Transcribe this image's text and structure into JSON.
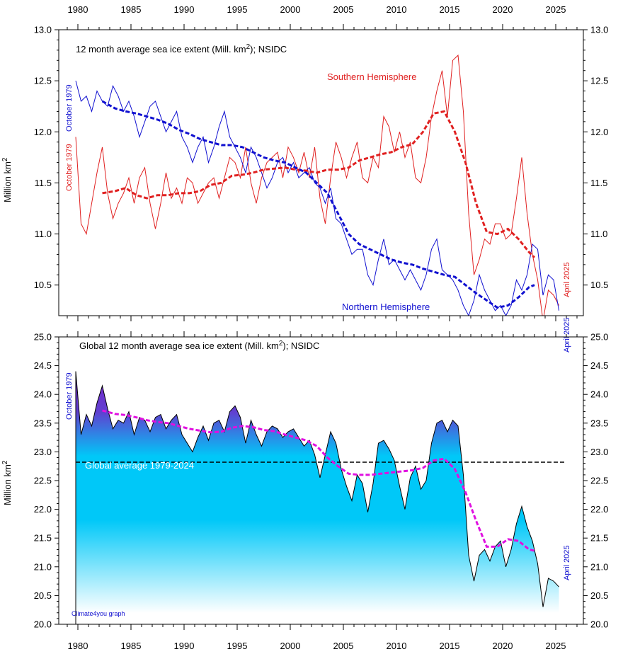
{
  "chart_data": [
    {
      "type": "line",
      "title": "12 month average sea ice extent (Mill. km²); NSIDC",
      "title_main": "12 month average sea ice extent (Mill. km",
      "title_sup": "2",
      "title_tail": "); NSIDC",
      "ylabel_main": "Million km",
      "ylabel_sup": "2",
      "ylim": [
        10.2,
        13.0
      ],
      "yticks": [
        "10.5",
        "11.0",
        "11.5",
        "12.0",
        "12.5",
        "13.0"
      ],
      "xlim": [
        1978.2,
        2027.6
      ],
      "xticks": [
        "1980",
        "1985",
        "1990",
        "1995",
        "2000",
        "2005",
        "2010",
        "2015",
        "2020",
        "2025"
      ],
      "start_label_nh": "October 1979",
      "start_label_sh": "October 1979",
      "end_label_sh": "April 2025",
      "end_label_nh": "April 2025",
      "series": [
        {
          "name": "Southern Hemisphere",
          "color": "#e02020",
          "x": [
            1979.8,
            1980.3,
            1980.8,
            1981.3,
            1981.8,
            1982.3,
            1982.8,
            1983.3,
            1983.8,
            1984.3,
            1984.8,
            1985.3,
            1985.8,
            1986.3,
            1986.8,
            1987.3,
            1987.8,
            1988.3,
            1988.8,
            1989.3,
            1989.8,
            1990.3,
            1990.8,
            1991.3,
            1991.8,
            1992.3,
            1992.8,
            1993.3,
            1993.8,
            1994.3,
            1994.8,
            1995.3,
            1995.8,
            1996.3,
            1996.8,
            1997.3,
            1997.8,
            1998.3,
            1998.8,
            1999.3,
            1999.8,
            2000.3,
            2000.8,
            2001.3,
            2001.8,
            2002.3,
            2002.8,
            2003.3,
            2003.8,
            2004.3,
            2004.8,
            2005.3,
            2005.8,
            2006.3,
            2006.8,
            2007.3,
            2007.8,
            2008.3,
            2008.8,
            2009.3,
            2009.8,
            2010.3,
            2010.8,
            2011.3,
            2011.8,
            2012.3,
            2012.8,
            2013.3,
            2013.8,
            2014.3,
            2014.8,
            2015.3,
            2015.8,
            2016.3,
            2016.8,
            2017.3,
            2017.8,
            2018.3,
            2018.8,
            2019.3,
            2019.8,
            2020.3,
            2020.8,
            2021.3,
            2021.8,
            2022.3,
            2022.8,
            2023.3,
            2023.8,
            2024.3,
            2024.8,
            2025.3
          ],
          "values": [
            11.95,
            11.1,
            11.0,
            11.3,
            11.6,
            11.85,
            11.4,
            11.15,
            11.3,
            11.4,
            11.55,
            11.3,
            11.55,
            11.65,
            11.3,
            11.05,
            11.3,
            11.6,
            11.35,
            11.45,
            11.3,
            11.55,
            11.5,
            11.3,
            11.4,
            11.5,
            11.55,
            11.35,
            11.55,
            11.75,
            11.7,
            11.55,
            11.85,
            11.5,
            11.3,
            11.55,
            11.7,
            11.75,
            11.8,
            11.55,
            11.85,
            11.75,
            11.6,
            11.8,
            11.55,
            11.85,
            11.35,
            11.1,
            11.55,
            11.9,
            11.75,
            11.55,
            11.75,
            11.9,
            11.55,
            11.5,
            11.75,
            11.65,
            12.15,
            12.05,
            11.8,
            12.0,
            11.75,
            11.9,
            11.55,
            11.5,
            11.75,
            12.15,
            12.4,
            12.6,
            12.15,
            12.7,
            12.75,
            12.2,
            11.2,
            10.6,
            10.75,
            10.95,
            10.9,
            11.1,
            11.1,
            10.95,
            11.0,
            11.35,
            11.75,
            11.2,
            10.8,
            10.55,
            10.15,
            10.45,
            10.4,
            10.3
          ]
        },
        {
          "name": "Northern Hemisphere",
          "color": "#1010d0",
          "x": [
            1979.8,
            1980.3,
            1980.8,
            1981.3,
            1981.8,
            1982.3,
            1982.8,
            1983.3,
            1983.8,
            1984.3,
            1984.8,
            1985.3,
            1985.8,
            1986.3,
            1986.8,
            1987.3,
            1987.8,
            1988.3,
            1988.8,
            1989.3,
            1989.8,
            1990.3,
            1990.8,
            1991.3,
            1991.8,
            1992.3,
            1992.8,
            1993.3,
            1993.8,
            1994.3,
            1994.8,
            1995.3,
            1995.8,
            1996.3,
            1996.8,
            1997.3,
            1997.8,
            1998.3,
            1998.8,
            1999.3,
            1999.8,
            2000.3,
            2000.8,
            2001.3,
            2001.8,
            2002.3,
            2002.8,
            2003.3,
            2003.8,
            2004.3,
            2004.8,
            2005.3,
            2005.8,
            2006.3,
            2006.8,
            2007.3,
            2007.8,
            2008.3,
            2008.8,
            2009.3,
            2009.8,
            2010.3,
            2010.8,
            2011.3,
            2011.8,
            2012.3,
            2012.8,
            2013.3,
            2013.8,
            2014.3,
            2014.8,
            2015.3,
            2015.8,
            2016.3,
            2016.8,
            2017.3,
            2017.8,
            2018.3,
            2018.8,
            2019.3,
            2019.8,
            2020.3,
            2020.8,
            2021.3,
            2021.8,
            2022.3,
            2022.8,
            2023.3,
            2023.8,
            2024.3,
            2024.8,
            2025.3
          ],
          "values": [
            12.5,
            12.3,
            12.35,
            12.2,
            12.4,
            12.3,
            12.25,
            12.45,
            12.35,
            12.2,
            12.3,
            12.15,
            11.95,
            12.1,
            12.25,
            12.3,
            12.15,
            12.0,
            12.1,
            12.2,
            11.95,
            11.85,
            11.7,
            11.85,
            11.95,
            11.7,
            11.85,
            12.05,
            12.2,
            11.95,
            11.85,
            11.75,
            11.6,
            11.85,
            11.75,
            11.6,
            11.45,
            11.55,
            11.7,
            11.75,
            11.6,
            11.7,
            11.55,
            11.6,
            11.65,
            11.5,
            11.45,
            11.3,
            11.45,
            11.15,
            11.1,
            10.95,
            10.8,
            10.85,
            10.85,
            10.6,
            10.5,
            10.75,
            10.95,
            10.7,
            10.75,
            10.65,
            10.55,
            10.65,
            10.55,
            10.45,
            10.6,
            10.85,
            10.95,
            10.65,
            10.6,
            10.55,
            10.45,
            10.3,
            10.2,
            10.35,
            10.6,
            10.45,
            10.35,
            10.25,
            10.3,
            10.2,
            10.3,
            10.55,
            10.45,
            10.6,
            10.9,
            10.85,
            10.4,
            10.6,
            10.55,
            10.25
          ]
        },
        {
          "name": "Southern Hemisphere smoothed",
          "color": "#e02020",
          "x": [
            1982.3,
            1983.5,
            1984.5,
            1985.5,
            1986.5,
            1987.5,
            1988.5,
            1989.5,
            1990.5,
            1991.5,
            1992.5,
            1993.5,
            1994.5,
            1995.5,
            1996.5,
            1997.5,
            1998.5,
            1999.5,
            2000.5,
            2001.5,
            2002.5,
            2003.5,
            2004.5,
            2005.5,
            2006.5,
            2007.5,
            2008.5,
            2009.5,
            2010.5,
            2011.5,
            2012.5,
            2013.5,
            2014.5,
            2015.5,
            2016.5,
            2017.5,
            2018.5,
            2019.5,
            2020.5,
            2021.5,
            2022.5,
            2023.0
          ],
          "values": [
            11.4,
            11.42,
            11.45,
            11.38,
            11.35,
            11.38,
            11.38,
            11.4,
            11.4,
            11.42,
            11.48,
            11.5,
            11.57,
            11.58,
            11.6,
            11.63,
            11.64,
            11.65,
            11.63,
            11.62,
            11.6,
            11.63,
            11.63,
            11.65,
            11.72,
            11.75,
            11.78,
            11.8,
            11.85,
            11.88,
            12.0,
            12.18,
            12.2,
            12.0,
            11.7,
            11.3,
            11.02,
            11.0,
            11.05,
            10.95,
            10.82,
            10.77
          ]
        },
        {
          "name": "Northern Hemisphere smoothed",
          "color": "#1010d0",
          "x": [
            1982.3,
            1983.5,
            1984.5,
            1985.5,
            1986.5,
            1987.5,
            1988.5,
            1989.5,
            1990.5,
            1991.5,
            1992.5,
            1993.5,
            1994.5,
            1995.5,
            1996.5,
            1997.5,
            1998.5,
            1999.5,
            2000.5,
            2001.5,
            2002.5,
            2003.5,
            2004.5,
            2005.5,
            2006.5,
            2007.5,
            2008.5,
            2009.5,
            2010.5,
            2011.5,
            2012.5,
            2013.5,
            2014.5,
            2015.5,
            2016.5,
            2017.5,
            2018.5,
            2019.5,
            2020.5,
            2021.5,
            2022.5,
            2023.0
          ],
          "values": [
            12.3,
            12.23,
            12.2,
            12.18,
            12.15,
            12.12,
            12.08,
            12.02,
            11.98,
            11.93,
            11.9,
            11.87,
            11.87,
            11.85,
            11.8,
            11.75,
            11.72,
            11.7,
            11.65,
            11.6,
            11.5,
            11.4,
            11.2,
            11.0,
            10.9,
            10.85,
            10.8,
            10.75,
            10.72,
            10.7,
            10.66,
            10.63,
            10.6,
            10.58,
            10.5,
            10.42,
            10.35,
            10.28,
            10.3,
            10.38,
            10.48,
            10.5
          ]
        }
      ]
    },
    {
      "type": "area",
      "title": "Global 12 month average sea ice extent (Mill. km²); NSIDC",
      "title_main": "Global 12 month average sea ice extent (Mill. km",
      "title_sup": "2",
      "title_tail": "); NSIDC",
      "ylabel_main": "Million km",
      "ylabel_sup": "2",
      "ylim": [
        20.0,
        25.0
      ],
      "yticks": [
        "20.0",
        "20.5",
        "21.0",
        "21.5",
        "22.0",
        "22.5",
        "23.0",
        "23.5",
        "24.0",
        "24.5",
        "25.0"
      ],
      "xlim": [
        1978.2,
        2027.6
      ],
      "xticks": [
        "1980",
        "1985",
        "1990",
        "1995",
        "2000",
        "2005",
        "2010",
        "2015",
        "2020",
        "2025"
      ],
      "start_label": "October 1979",
      "end_label": "April 2025",
      "reference_label": "Global average 1979-2024",
      "reference_value": 22.82,
      "credit": "Climate4you graph",
      "series": [
        {
          "name": "Global extent",
          "fill_top": "#7a20c8",
          "fill_mid": "#00c8f8",
          "fill_bottom": "#ffffff",
          "x": [
            1979.8,
            1980.3,
            1980.8,
            1981.3,
            1981.8,
            1982.3,
            1982.8,
            1983.3,
            1983.8,
            1984.3,
            1984.8,
            1985.3,
            1985.8,
            1986.3,
            1986.8,
            1987.3,
            1987.8,
            1988.3,
            1988.8,
            1989.3,
            1989.8,
            1990.3,
            1990.8,
            1991.3,
            1991.8,
            1992.3,
            1992.8,
            1993.3,
            1993.8,
            1994.3,
            1994.8,
            1995.3,
            1995.8,
            1996.3,
            1996.8,
            1997.3,
            1997.8,
            1998.3,
            1998.8,
            1999.3,
            1999.8,
            2000.3,
            2000.8,
            2001.3,
            2001.8,
            2002.3,
            2002.8,
            2003.3,
            2003.8,
            2004.3,
            2004.8,
            2005.3,
            2005.8,
            2006.3,
            2006.8,
            2007.3,
            2007.8,
            2008.3,
            2008.8,
            2009.3,
            2009.8,
            2010.3,
            2010.8,
            2011.3,
            2011.8,
            2012.3,
            2012.8,
            2013.3,
            2013.8,
            2014.3,
            2014.8,
            2015.3,
            2015.8,
            2016.3,
            2016.8,
            2017.3,
            2017.8,
            2018.3,
            2018.8,
            2019.3,
            2019.8,
            2020.3,
            2020.8,
            2021.3,
            2021.8,
            2022.3,
            2022.8,
            2023.3,
            2023.8,
            2024.3,
            2024.8,
            2025.3
          ],
          "values": [
            24.4,
            23.3,
            23.65,
            23.45,
            23.85,
            24.15,
            23.75,
            23.4,
            23.55,
            23.5,
            23.7,
            23.3,
            23.6,
            23.55,
            23.35,
            23.6,
            23.65,
            23.4,
            23.55,
            23.65,
            23.3,
            23.15,
            23.0,
            23.25,
            23.45,
            23.2,
            23.5,
            23.55,
            23.35,
            23.7,
            23.8,
            23.6,
            23.15,
            23.55,
            23.3,
            23.1,
            23.35,
            23.45,
            23.4,
            23.25,
            23.35,
            23.4,
            23.25,
            23.1,
            23.2,
            22.95,
            22.55,
            22.95,
            23.35,
            23.15,
            22.7,
            22.4,
            22.15,
            22.6,
            22.45,
            21.95,
            22.45,
            23.15,
            23.2,
            23.05,
            22.85,
            22.4,
            22.0,
            22.55,
            22.75,
            22.35,
            22.5,
            23.15,
            23.5,
            23.55,
            23.35,
            23.55,
            23.45,
            22.6,
            21.2,
            20.75,
            21.2,
            21.3,
            21.1,
            21.35,
            21.45,
            21.0,
            21.3,
            21.75,
            22.05,
            21.7,
            21.45,
            21.05,
            20.3,
            20.8,
            20.75,
            20.65
          ]
        },
        {
          "name": "Global extent smoothed",
          "color": "#e010e0",
          "x": [
            1982.3,
            1983.5,
            1984.5,
            1985.5,
            1986.5,
            1987.5,
            1988.5,
            1989.5,
            1990.5,
            1991.5,
            1992.5,
            1993.5,
            1994.5,
            1995.5,
            1996.5,
            1997.5,
            1998.5,
            1999.5,
            2000.5,
            2001.5,
            2002.5,
            2003.5,
            2004.5,
            2005.5,
            2006.5,
            2007.5,
            2008.5,
            2009.5,
            2010.5,
            2011.5,
            2012.5,
            2013.5,
            2014.5,
            2015.5,
            2016.5,
            2017.5,
            2018.5,
            2019.5,
            2020.5,
            2021.5,
            2022.5,
            2023.0
          ],
          "values": [
            23.72,
            23.66,
            23.64,
            23.6,
            23.55,
            23.52,
            23.5,
            23.45,
            23.4,
            23.37,
            23.34,
            23.35,
            23.42,
            23.45,
            23.43,
            23.38,
            23.36,
            23.3,
            23.25,
            23.2,
            23.1,
            22.9,
            22.75,
            22.62,
            22.6,
            22.6,
            22.62,
            22.64,
            22.66,
            22.68,
            22.72,
            22.85,
            22.88,
            22.7,
            22.3,
            21.8,
            21.35,
            21.35,
            21.48,
            21.45,
            21.3,
            21.28
          ]
        }
      ]
    }
  ]
}
